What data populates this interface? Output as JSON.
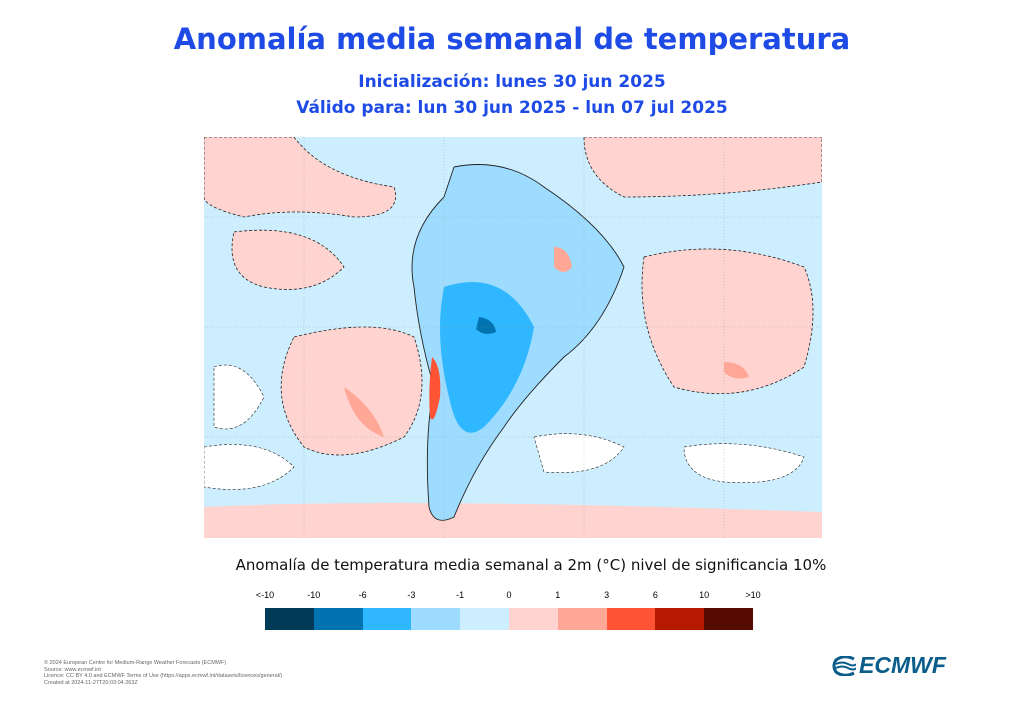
{
  "title": "Anomalía  media semanal de temperatura",
  "subtitle1": "Inicialización: lunes 30 jun 2025",
  "subtitle2": "Válido para: lun 30 jun 2025 - lun 07 jul 2025",
  "caption": "Anomalía de temperatura media semanal a 2m (°C) nivel de significancia 10%",
  "legend": {
    "labels": [
      "<-10",
      "-10",
      "-6",
      "-3",
      "-1",
      "0",
      "1",
      "3",
      "6",
      "10",
      ">10"
    ],
    "colors": [
      "#003a57",
      "#0073b0",
      "#2fb8ff",
      "#9edcff",
      "#cdeeff",
      "#ffd3cf",
      "#ffa898",
      "#ff5335",
      "#b51a00",
      "#560b00"
    ]
  },
  "map": {
    "region": "South America",
    "land_border_color": "#333333",
    "significance_contour": "dashed"
  },
  "footer": [
    "© 2024 European Centre for Medium-Range Weather Forecasts (ECMWF)",
    "Source: www.ecmwf.int",
    "Licence: CC BY 4.0 and ECMWF Terms of Use (https://apps.ecmwf.int/datasets/licences/general/)",
    "Created at 2024-11-27T20:03:04.263Z"
  ],
  "logo": {
    "text": "ECMWF"
  }
}
